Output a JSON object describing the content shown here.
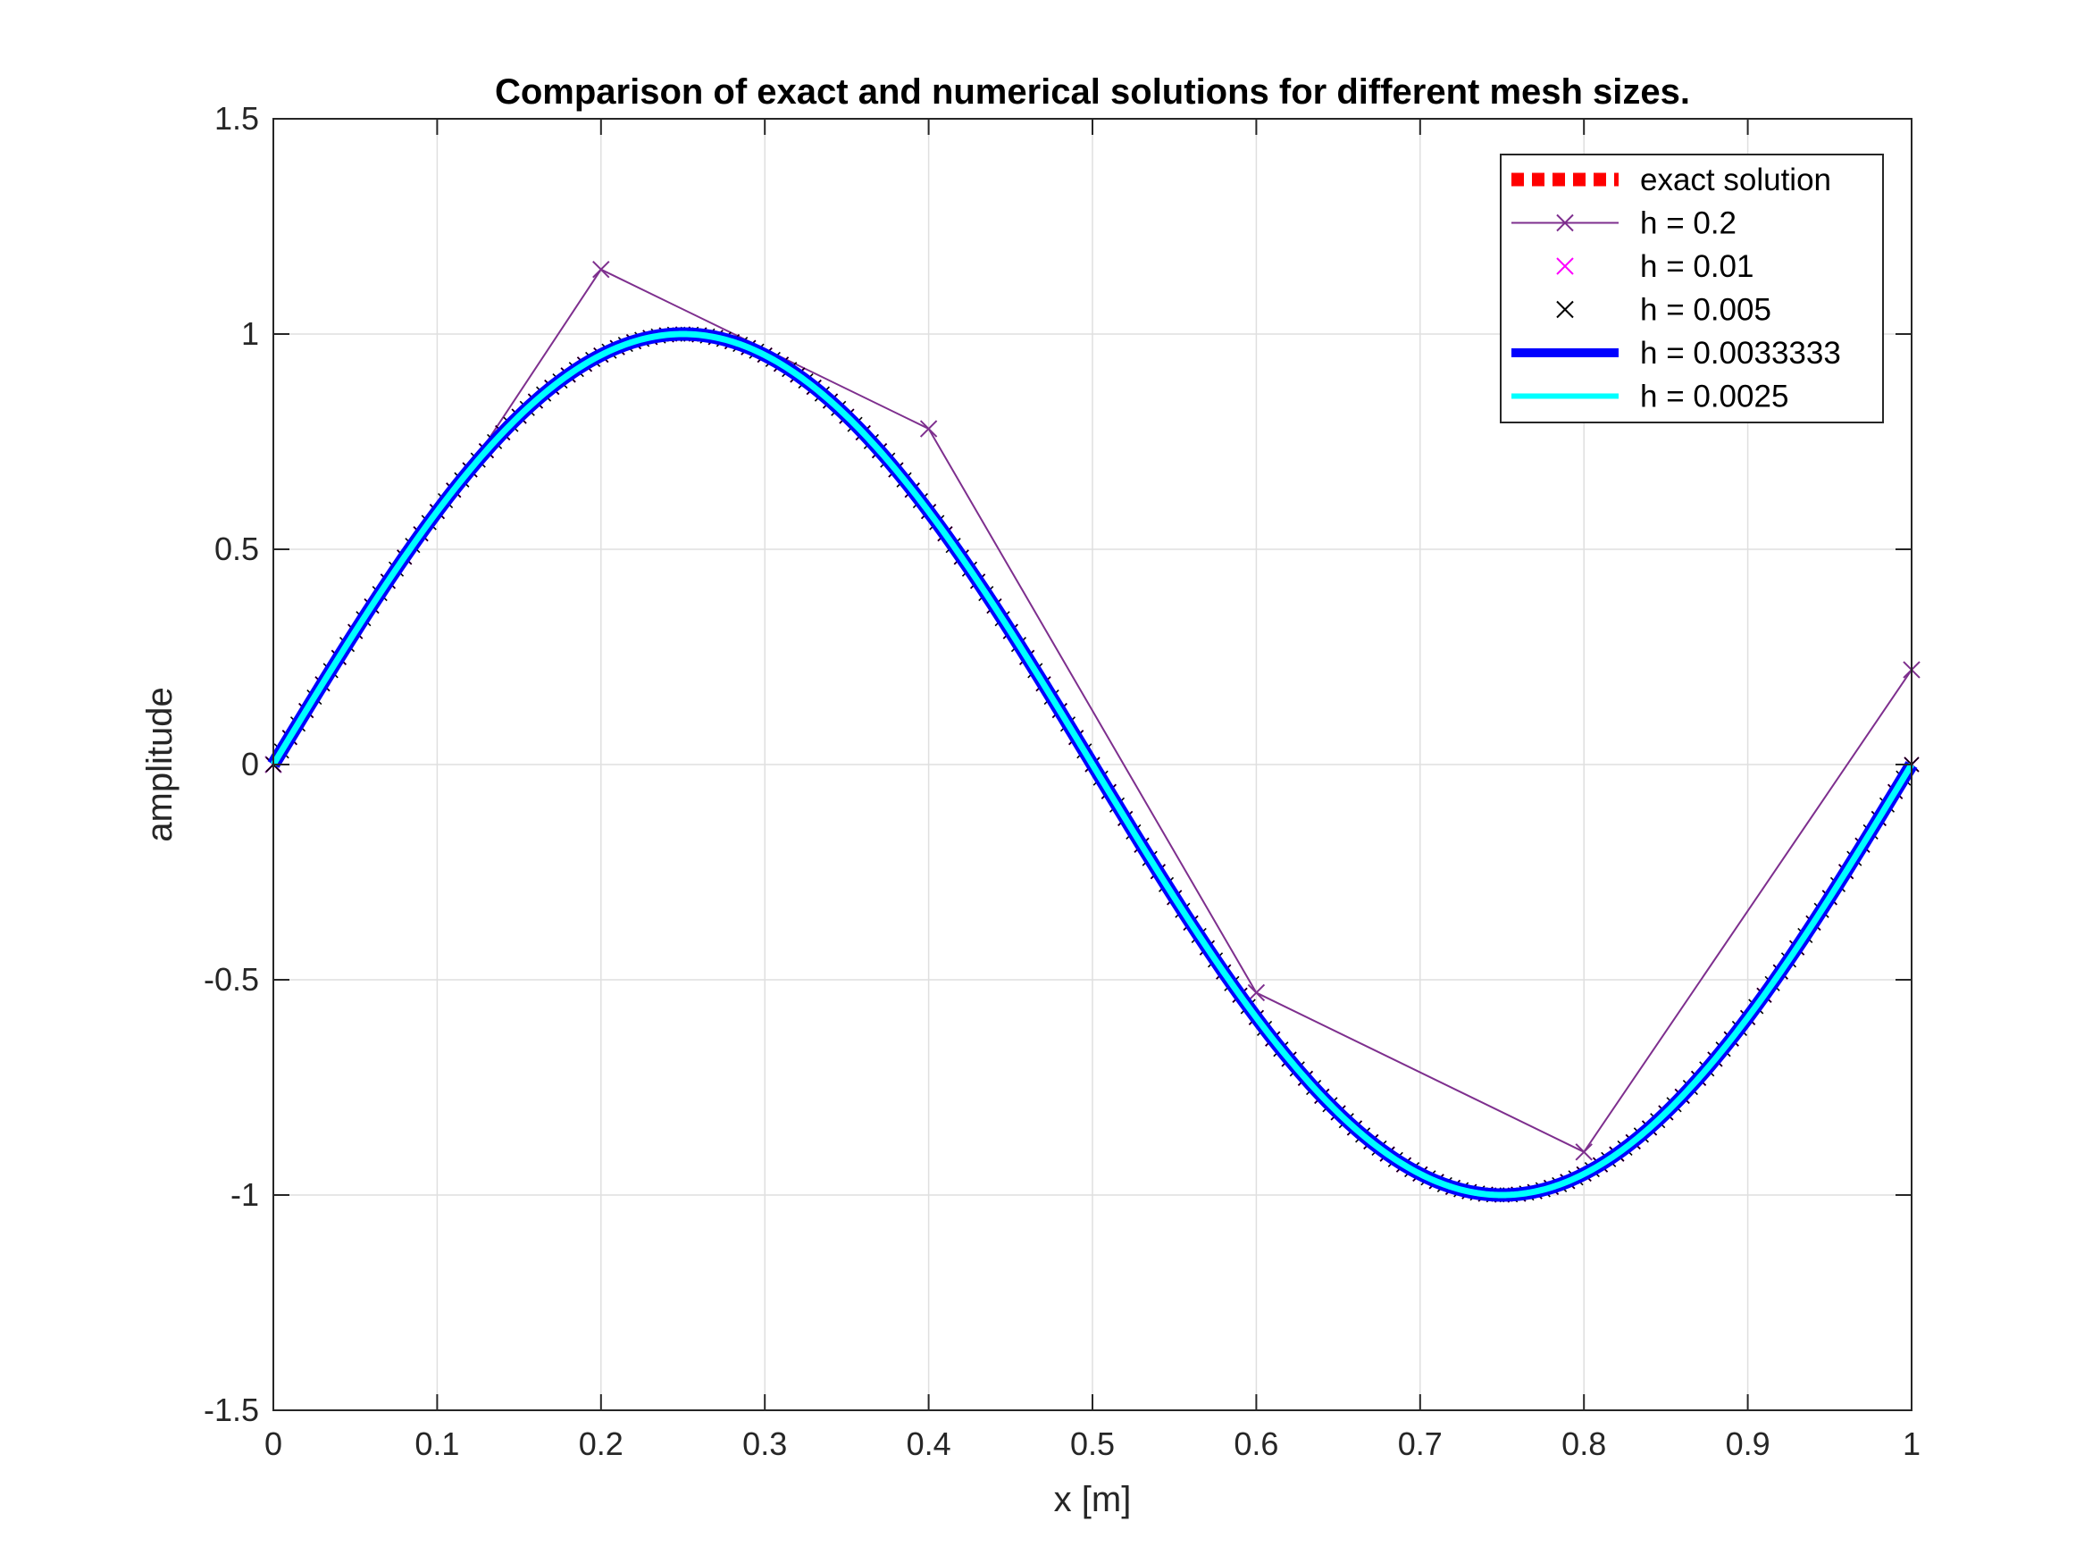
{
  "chart_data": {
    "type": "line",
    "title": "Comparison of exact and numerical solutions for different mesh sizes.",
    "xlabel": "x [m]",
    "ylabel": "amplitude",
    "xlim": [
      0,
      1
    ],
    "ylim": [
      -1.5,
      1.5
    ],
    "xticks": [
      0,
      0.1,
      0.2,
      0.3,
      0.4,
      0.5,
      0.6,
      0.7,
      0.8,
      0.9,
      1
    ],
    "xtick_labels": [
      "0",
      "0.1",
      "0.2",
      "0.3",
      "0.4",
      "0.5",
      "0.6",
      "0.7",
      "0.8",
      "0.9",
      "1"
    ],
    "yticks": [
      -1.5,
      -1,
      -0.5,
      0,
      0.5,
      1,
      1.5
    ],
    "ytick_labels": [
      "-1.5",
      "-1",
      "-0.5",
      "0",
      "0.5",
      "1",
      "1.5"
    ],
    "grid": true,
    "legend_position": "top-right",
    "series": [
      {
        "name": "exact solution",
        "function": "sin(2*pi*x)",
        "style": "dotted",
        "color": "#ff0000",
        "n_points": 201
      },
      {
        "name": "h =  0.2",
        "x": [
          0,
          0.2,
          0.4,
          0.6,
          0.8,
          1.0
        ],
        "y": [
          0,
          1.15,
          0.78,
          -0.53,
          -0.9,
          0.22
        ],
        "style": "line+x",
        "color": "#7e2f8e"
      },
      {
        "name": "h =  0.01",
        "function": "sin(2*pi*x)",
        "h": 0.01,
        "style": "x",
        "color": "#ff00ff"
      },
      {
        "name": "h =  0.005",
        "function": "sin(2*pi*x)",
        "h": 0.005,
        "style": "x",
        "color": "#000000"
      },
      {
        "name": "h =  0.0033333",
        "function": "sin(2*pi*x)",
        "style": "line",
        "color": "#0000ff",
        "n_points": 301
      },
      {
        "name": "h =  0.0025",
        "function": "sin(2*pi*x)",
        "style": "line",
        "color": "#00ffff",
        "n_points": 401
      }
    ]
  }
}
